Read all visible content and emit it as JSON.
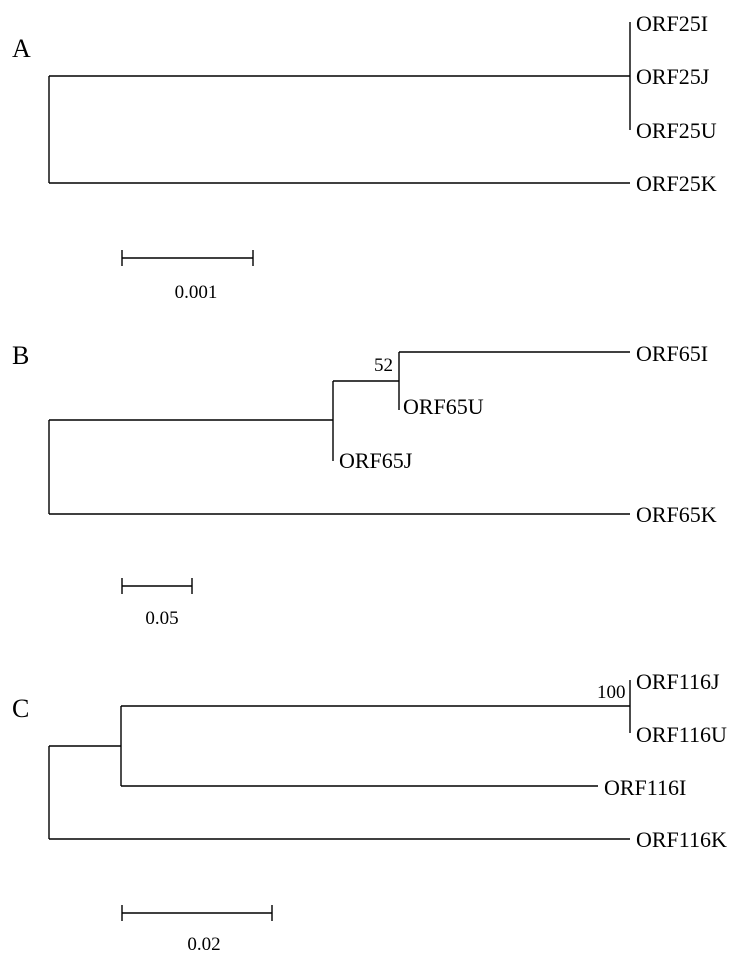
{
  "panels": [
    {
      "letter": "A",
      "leaves": [
        "ORF25I",
        "ORF25J",
        "ORF25U",
        "ORF25K"
      ],
      "supports": [],
      "scale": {
        "label": "0.001",
        "value": 0.001
      }
    },
    {
      "letter": "B",
      "leaves": [
        "ORF65I",
        "ORF65U",
        "ORF65J",
        "ORF65K"
      ],
      "supports": [
        "52"
      ],
      "scale": {
        "label": "0.05",
        "value": 0.05
      }
    },
    {
      "letter": "C",
      "leaves": [
        "ORF116J",
        "ORF116U",
        "ORF116I",
        "ORF116K"
      ],
      "supports": [
        "100"
      ],
      "scale": {
        "label": "0.02",
        "value": 0.02
      }
    }
  ]
}
